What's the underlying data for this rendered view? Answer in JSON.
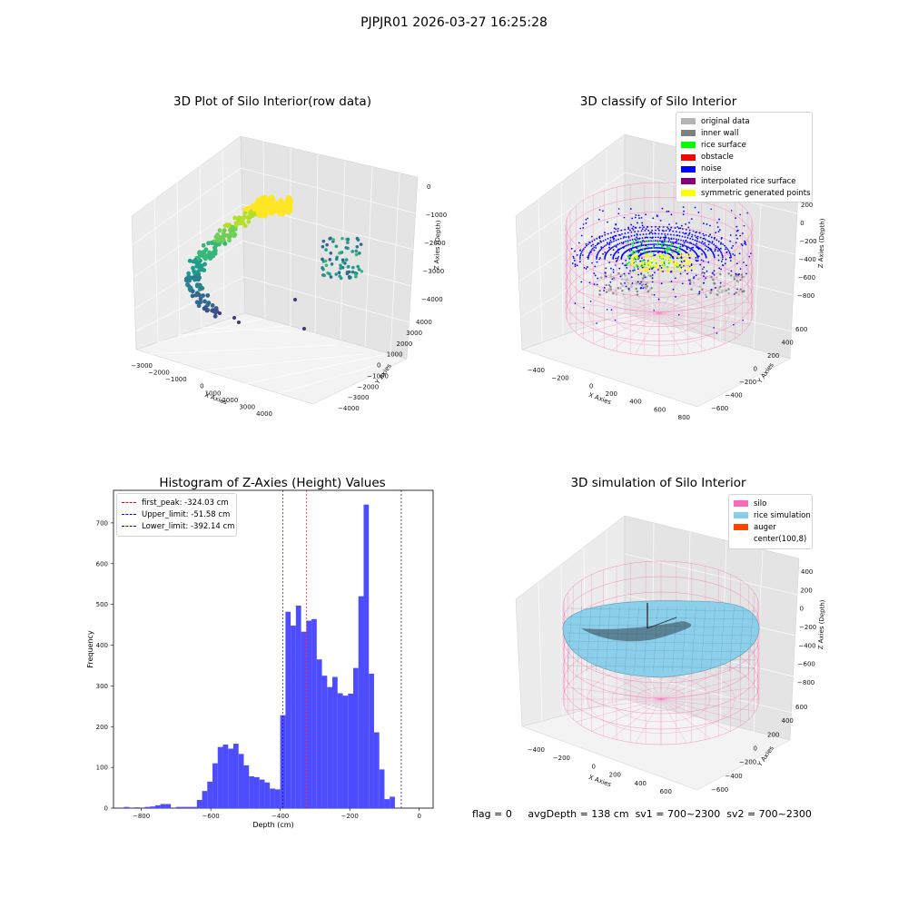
{
  "suptitle": "PJPJR01 2026-03-27 16:25:28",
  "panels": {
    "tl_title": "3D Plot of Silo Interior(row data)",
    "tr_title": "3D classify of Silo Interior",
    "bl_title": "Histogram of Z-Axies (Height) Values",
    "br_title": "3D simulation of Silo Interior"
  },
  "tl_axes": {
    "xlabel": "X Axies",
    "ylabel": "Y Axies",
    "zlabel": "Z Axies (Depth)",
    "xticks": [
      "-3000",
      "-2000",
      "-1000",
      "0",
      "1000",
      "2000",
      "3000",
      "4000"
    ],
    "yticks": [
      "-4000",
      "-3000",
      "-2000",
      "-1000",
      "0",
      "1000",
      "2000",
      "3000",
      "4000"
    ],
    "zticks": [
      "0",
      "-1000",
      "-2000",
      "-3000",
      "-4000"
    ]
  },
  "tr_axes": {
    "xlabel": "X Axies",
    "ylabel": "Y Axies",
    "zlabel": "Z Axies (Depth)",
    "xticks": [
      "-400",
      "-200",
      "0",
      "200",
      "400",
      "600",
      "800"
    ],
    "yticks": [
      "-600",
      "-400",
      "-200",
      "0",
      "200",
      "400",
      "600"
    ],
    "zticks": [
      "200",
      "0",
      "-200",
      "-400",
      "-600",
      "-800"
    ]
  },
  "tr_legend": [
    {
      "label": "original data",
      "color": "#b4b4b4"
    },
    {
      "label": "inner wall",
      "color": "#808080"
    },
    {
      "label": "rice surface",
      "color": "#00ff00"
    },
    {
      "label": "obstacle",
      "color": "#ff0000"
    },
    {
      "label": "noise",
      "color": "#0000ff"
    },
    {
      "label": "interpolated rice surface",
      "color": "#800080"
    },
    {
      "label": "symmetric generated points",
      "color": "#ffff00"
    }
  ],
  "br_axes": {
    "xlabel": "X Axies",
    "ylabel": "Y Axies",
    "zlabel": "Z Axies (Depth)",
    "xticks": [
      "-400",
      "-200",
      "0",
      "200",
      "400",
      "600"
    ],
    "yticks": [
      "-600",
      "-400",
      "-200",
      "0",
      "200",
      "400",
      "600"
    ],
    "zticks": [
      "400",
      "200",
      "0",
      "-200",
      "-400",
      "-600",
      "-800"
    ]
  },
  "br_legend": [
    {
      "label": "silo",
      "color": "#ff69b4"
    },
    {
      "label": "rice simulation",
      "color": "#87ceeb"
    },
    {
      "label": "auger",
      "color": "#ff4500"
    },
    {
      "label": "center(100,8)",
      "color": "#ffffff"
    }
  ],
  "footer": {
    "flag": "flag = 0",
    "avg": "avgDepth = 138 cm",
    "sv1": "sv1 = 700~2300",
    "sv2": "sv2 = 700~2300"
  },
  "chart_data": {
    "type": "bar",
    "title": "Histogram of Z-Axies (Height) Values",
    "xlabel": "Depth (cm)",
    "ylabel": "Frequency",
    "xlim": [
      -880,
      40
    ],
    "ylim": [
      0,
      780
    ],
    "xticks": [
      -800,
      -600,
      -400,
      -200,
      0
    ],
    "yticks": [
      0,
      100,
      200,
      300,
      400,
      500,
      600,
      700
    ],
    "color": "#4d4dff",
    "bin_width": 15,
    "bins": [
      {
        "x": -850,
        "v": 3
      },
      {
        "x": -820,
        "v": 2
      },
      {
        "x": -790,
        "v": 3
      },
      {
        "x": -775,
        "v": 4
      },
      {
        "x": -760,
        "v": 7
      },
      {
        "x": -745,
        "v": 10
      },
      {
        "x": -730,
        "v": 10
      },
      {
        "x": -700,
        "v": 3
      },
      {
        "x": -685,
        "v": 3
      },
      {
        "x": -670,
        "v": 3
      },
      {
        "x": -655,
        "v": 3
      },
      {
        "x": -640,
        "v": 20
      },
      {
        "x": -625,
        "v": 42
      },
      {
        "x": -610,
        "v": 65
      },
      {
        "x": -595,
        "v": 110
      },
      {
        "x": -580,
        "v": 150
      },
      {
        "x": -565,
        "v": 156
      },
      {
        "x": -550,
        "v": 146
      },
      {
        "x": -535,
        "v": 158
      },
      {
        "x": -520,
        "v": 133
      },
      {
        "x": -505,
        "v": 105
      },
      {
        "x": -490,
        "v": 78
      },
      {
        "x": -475,
        "v": 76
      },
      {
        "x": -460,
        "v": 70
      },
      {
        "x": -445,
        "v": 63
      },
      {
        "x": -430,
        "v": 48
      },
      {
        "x": -415,
        "v": 46
      },
      {
        "x": -400,
        "v": 228
      },
      {
        "x": -385,
        "v": 482
      },
      {
        "x": -370,
        "v": 448
      },
      {
        "x": -355,
        "v": 497
      },
      {
        "x": -340,
        "v": 433
      },
      {
        "x": -325,
        "v": 460
      },
      {
        "x": -310,
        "v": 464
      },
      {
        "x": -295,
        "v": 365
      },
      {
        "x": -280,
        "v": 325
      },
      {
        "x": -265,
        "v": 297
      },
      {
        "x": -250,
        "v": 322
      },
      {
        "x": -235,
        "v": 282
      },
      {
        "x": -220,
        "v": 276
      },
      {
        "x": -205,
        "v": 281
      },
      {
        "x": -190,
        "v": 344
      },
      {
        "x": -175,
        "v": 520
      },
      {
        "x": -160,
        "v": 745
      },
      {
        "x": -145,
        "v": 330
      },
      {
        "x": -130,
        "v": 186
      },
      {
        "x": -115,
        "v": 95
      },
      {
        "x": -100,
        "v": 22
      },
      {
        "x": -85,
        "v": 28
      }
    ],
    "lines": [
      {
        "name": "first_peak: -324.03 cm",
        "x": -324.03,
        "color": "#ff0000"
      },
      {
        "name": "Upper_limit: -51.58 cm",
        "x": -51.58,
        "color": "#0000ff"
      },
      {
        "name": "Lower_limit: -392.14 cm",
        "x": -392.14,
        "color": "#0000ff"
      }
    ]
  }
}
